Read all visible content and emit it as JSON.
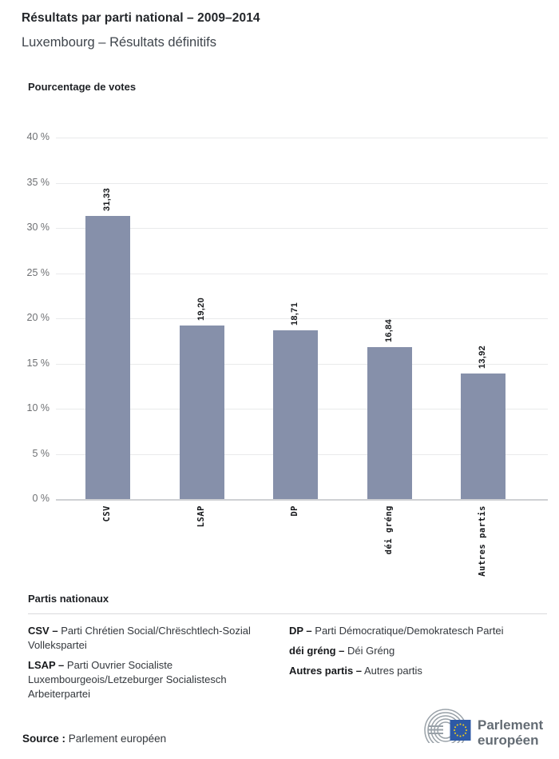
{
  "header": {
    "title": "Résultats par parti national – 2009–2014",
    "subtitle": "Luxembourg – Résultats définitifs"
  },
  "chart_data": {
    "type": "bar",
    "title": "Pourcentage de votes",
    "categories": [
      "CSV",
      "LSAP",
      "DP",
      "déi gréng",
      "Autres partis"
    ],
    "values": [
      31.33,
      19.2,
      18.71,
      16.84,
      13.92
    ],
    "value_labels": [
      "31,33",
      "19,20",
      "18,71",
      "16,84",
      "13,92"
    ],
    "ylim": [
      0,
      40
    ],
    "ytick_step": 5,
    "ytick_labels": [
      "0 %",
      "5 %",
      "10 %",
      "15 %",
      "20 %",
      "25 %",
      "30 %",
      "35 %",
      "40 %"
    ],
    "grid": true,
    "legend_position": "below",
    "bar_color": "#8690aa"
  },
  "legend": {
    "heading": "Partis nationaux",
    "columns": [
      [
        {
          "label": "CSV –",
          "text": "Parti Chrétien Social/Chrëschtlech-Sozial Vollekspartei"
        },
        {
          "label": "LSAP –",
          "text": "Parti Ouvrier Socialiste Luxembourgeois/Letzeburger Socialistesch Arbeiterpartei"
        }
      ],
      [
        {
          "label": "DP –",
          "text": "Parti Démocratique/Demokratesch Partei"
        },
        {
          "label": "déi gréng –",
          "text": "Déi Gréng"
        },
        {
          "label": "Autres partis –",
          "text": "Autres partis"
        }
      ]
    ]
  },
  "footer": {
    "source_label": "Source :",
    "source_text": "Parlement européen",
    "logo": {
      "line1": "Parlement",
      "line2": "européen",
      "flag_color": "#2d59a6",
      "star_color": "#f7d117",
      "arc_color": "#99a1a8",
      "text_color": "#646c74"
    }
  }
}
